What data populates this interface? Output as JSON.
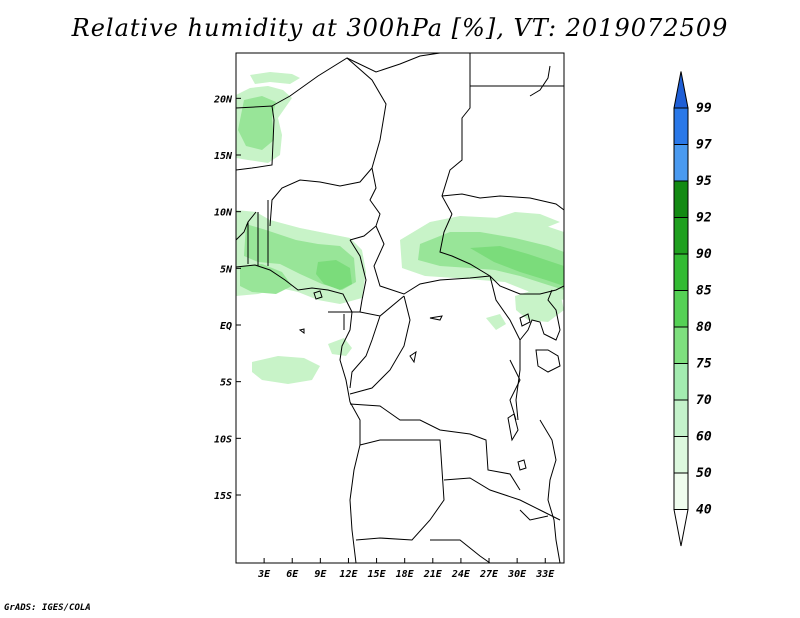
{
  "title": "Relative humidity at 300hPa [%], VT: 2019072509",
  "footer": "GrADS: IGES/COLA",
  "map": {
    "lat_labels": [
      {
        "label": "20N",
        "lat": 20
      },
      {
        "label": "15N",
        "lat": 15
      },
      {
        "label": "10N",
        "lat": 10
      },
      {
        "label": "5N",
        "lat": 5
      },
      {
        "label": "EQ",
        "lat": 0
      },
      {
        "label": "5S",
        "lat": -5
      },
      {
        "label": "10S",
        "lat": -10
      },
      {
        "label": "15S",
        "lat": -15
      }
    ],
    "lon_labels": [
      {
        "label": "3E",
        "lon": 3
      },
      {
        "label": "6E",
        "lon": 6
      },
      {
        "label": "9E",
        "lon": 9
      },
      {
        "label": "12E",
        "lon": 12
      },
      {
        "label": "15E",
        "lon": 15
      },
      {
        "label": "18E",
        "lon": 18
      },
      {
        "label": "21E",
        "lon": 21
      },
      {
        "label": "24E",
        "lon": 24
      },
      {
        "label": "27E",
        "lon": 27
      },
      {
        "label": "30E",
        "lon": 30
      },
      {
        "label": "33E",
        "lon": 33
      }
    ]
  },
  "colorbar": {
    "levels": [
      "99",
      "97",
      "95",
      "92",
      "90",
      "85",
      "80",
      "75",
      "70",
      "60",
      "50",
      "40"
    ],
    "segments": [
      {
        "color": "#1f5fd6"
      },
      {
        "color": "#2a78e8"
      },
      {
        "color": "#4a9af0"
      },
      {
        "color": "#138a13"
      },
      {
        "color": "#1fa01f"
      },
      {
        "color": "#33bb33"
      },
      {
        "color": "#55d155"
      },
      {
        "color": "#7ee07e"
      },
      {
        "color": "#a3ebb0"
      },
      {
        "color": "#c4f2cb"
      },
      {
        "color": "#dcf8de"
      },
      {
        "color": "#effcee"
      },
      {
        "color": "#ffffff"
      }
    ]
  },
  "colors": {
    "rh_light": "#c8f3c8",
    "rh_mid": "#98e598",
    "rh_dark": "#7bdc7b",
    "border": "#000000"
  }
}
